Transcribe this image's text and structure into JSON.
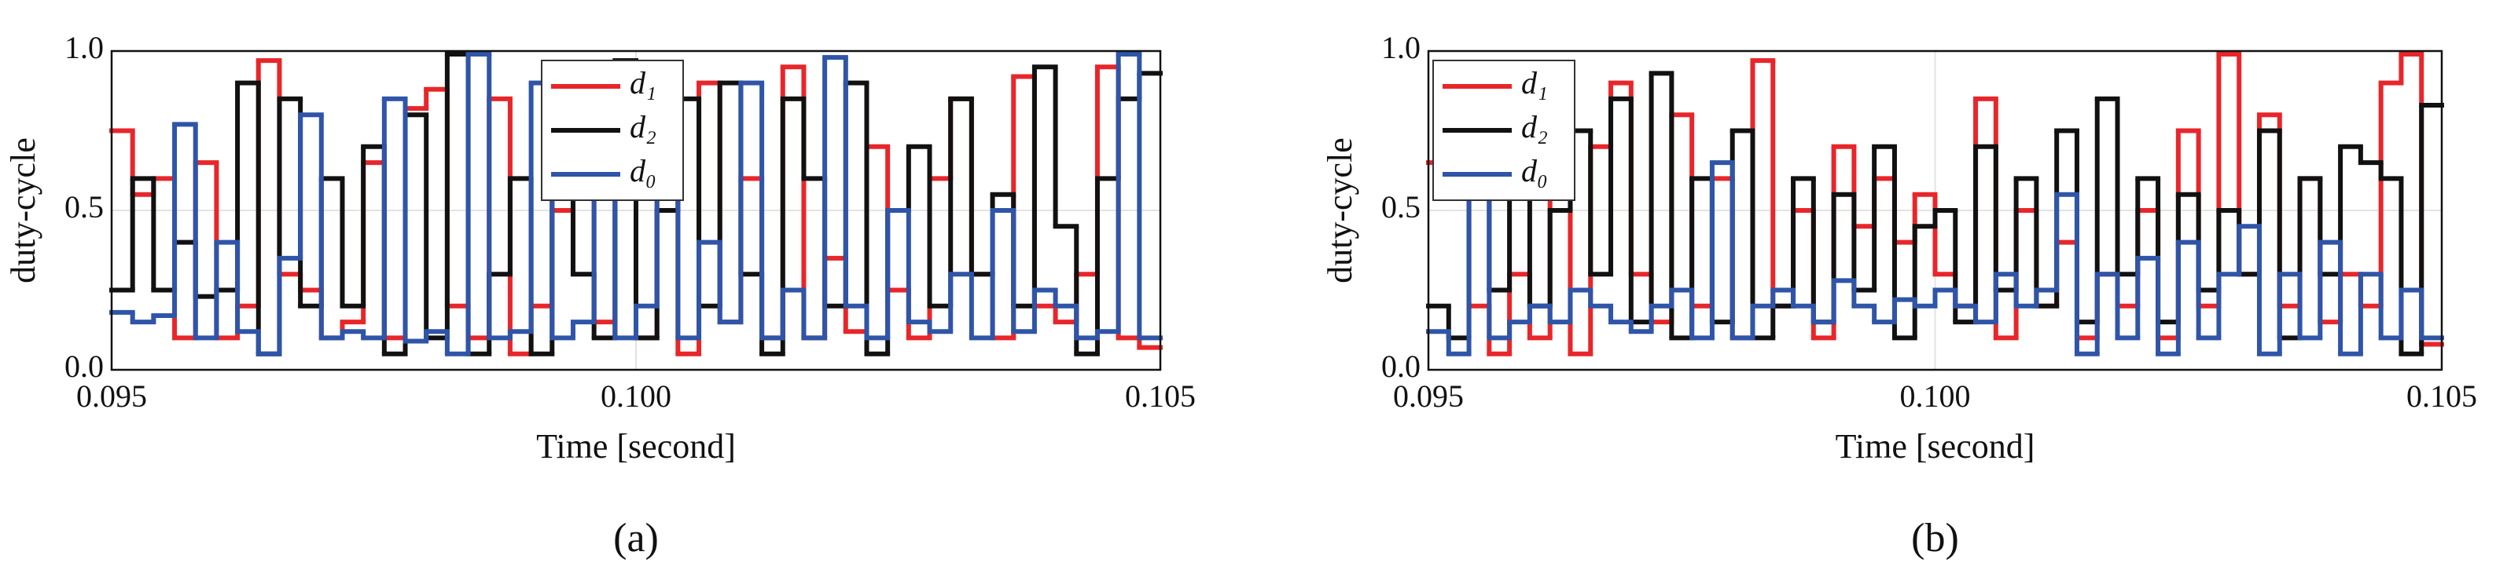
{
  "chart_data": [
    {
      "type": "step",
      "panel_label": "(a)",
      "xlabel": "Time [second]",
      "ylabel": "duty-cycle",
      "xlim": [
        0.095,
        0.105
      ],
      "ylim": [
        0,
        1
      ],
      "xticks": [
        0.095,
        {
          "value": 0.1,
          "label": "0.100"
        },
        0.105
      ],
      "yticks": [
        {
          "value": 0,
          "label": "0.0"
        },
        0.5,
        {
          "value": 1,
          "label": "1.0"
        }
      ],
      "grid": true,
      "legend": "upper center",
      "x": [
        0.095,
        0.0952,
        0.0954,
        0.0956,
        0.0958,
        0.096,
        0.0962,
        0.0964,
        0.0966,
        0.0968,
        0.097,
        0.0972,
        0.0974,
        0.0976,
        0.0978,
        0.098,
        0.0982,
        0.0984,
        0.0986,
        0.0988,
        0.099,
        0.0992,
        0.0994,
        0.0996,
        0.0998,
        0.1,
        0.1002,
        0.1004,
        0.1006,
        0.1008,
        0.101,
        0.1012,
        0.1014,
        0.1016,
        0.1018,
        0.102,
        0.1022,
        0.1024,
        0.1026,
        0.1028,
        0.103,
        0.1032,
        0.1034,
        0.1036,
        0.1038,
        0.104,
        0.1042,
        0.1044,
        0.1046,
        0.1048
      ],
      "series": [
        {
          "name": "d₁",
          "color": "#e8262a",
          "values": [
            0.75,
            0.55,
            0.6,
            0.1,
            0.65,
            0.1,
            0.2,
            0.97,
            0.3,
            0.25,
            0.1,
            0.15,
            0.65,
            0.1,
            0.82,
            0.88,
            0.2,
            0.1,
            0.85,
            0.05,
            0.2,
            0.5,
            0.55,
            0.15,
            0.9,
            0.1,
            0.7,
            0.05,
            0.9,
            0.15,
            0.6,
            0.1,
            0.95,
            0.1,
            0.35,
            0.12,
            0.7,
            0.25,
            0.1,
            0.6,
            0.85,
            0.3,
            0.1,
            0.92,
            0.2,
            0.15,
            0.3,
            0.95,
            0.1,
            0.07
          ]
        },
        {
          "name": "d₂",
          "color": "#111111",
          "values": [
            0.25,
            0.6,
            0.25,
            0.4,
            0.23,
            0.25,
            0.9,
            0.05,
            0.85,
            0.2,
            0.6,
            0.2,
            0.7,
            0.05,
            0.8,
            0.1,
            0.99,
            0.05,
            0.3,
            0.6,
            0.05,
            0.8,
            0.3,
            0.1,
            0.97,
            0.1,
            0.5,
            0.85,
            0.2,
            0.9,
            0.3,
            0.05,
            0.85,
            0.6,
            0.2,
            0.9,
            0.05,
            0.5,
            0.7,
            0.2,
            0.85,
            0.3,
            0.55,
            0.2,
            0.95,
            0.45,
            0.05,
            0.6,
            0.85,
            0.93
          ]
        },
        {
          "name": "d₀",
          "color": "#2f55a8",
          "values": [
            0.18,
            0.15,
            0.17,
            0.77,
            0.1,
            0.4,
            0.12,
            0.05,
            0.35,
            0.8,
            0.1,
            0.12,
            0.1,
            0.85,
            0.09,
            0.12,
            0.05,
            0.99,
            0.1,
            0.12,
            0.9,
            0.1,
            0.15,
            0.7,
            0.1,
            0.2,
            0.95,
            0.1,
            0.4,
            0.15,
            0.9,
            0.1,
            0.25,
            0.1,
            0.98,
            0.2,
            0.1,
            0.5,
            0.15,
            0.12,
            0.3,
            0.1,
            0.5,
            0.12,
            0.25,
            0.2,
            0.1,
            0.12,
            0.99,
            0.1
          ]
        }
      ]
    },
    {
      "type": "step",
      "panel_label": "(b)",
      "xlabel": "Time [second]",
      "ylabel": "duty-cycle",
      "xlim": [
        0.095,
        0.105
      ],
      "ylim": [
        0,
        1
      ],
      "xticks": [
        0.095,
        {
          "value": 0.1,
          "label": "0.100"
        },
        0.105
      ],
      "yticks": [
        {
          "value": 0,
          "label": "0.0"
        },
        0.5,
        {
          "value": 1,
          "label": "1.0"
        }
      ],
      "grid": true,
      "legend": "upper left",
      "x": [
        0.095,
        0.0952,
        0.0954,
        0.0956,
        0.0958,
        0.096,
        0.0962,
        0.0964,
        0.0966,
        0.0968,
        0.097,
        0.0972,
        0.0974,
        0.0976,
        0.0978,
        0.098,
        0.0982,
        0.0984,
        0.0986,
        0.0988,
        0.099,
        0.0992,
        0.0994,
        0.0996,
        0.0998,
        0.1,
        0.1002,
        0.1004,
        0.1006,
        0.1008,
        0.101,
        0.1012,
        0.1014,
        0.1016,
        0.1018,
        0.102,
        0.1022,
        0.1024,
        0.1026,
        0.1028,
        0.103,
        0.1032,
        0.1034,
        0.1036,
        0.1038,
        0.104,
        0.1042,
        0.1044,
        0.1046,
        0.1048
      ],
      "series": [
        {
          "name": "d₁",
          "color": "#e8262a",
          "values": [
            0.65,
            0.9,
            0.2,
            0.05,
            0.3,
            0.1,
            0.6,
            0.05,
            0.7,
            0.9,
            0.3,
            0.15,
            0.8,
            0.2,
            0.6,
            0.1,
            0.97,
            0.2,
            0.5,
            0.1,
            0.7,
            0.45,
            0.6,
            0.4,
            0.55,
            0.3,
            0.2,
            0.85,
            0.1,
            0.5,
            0.2,
            0.4,
            0.1,
            0.3,
            0.2,
            0.5,
            0.1,
            0.75,
            0.2,
            0.99,
            0.3,
            0.8,
            0.2,
            0.6,
            0.15,
            0.3,
            0.2,
            0.9,
            0.99,
            0.08
          ]
        },
        {
          "name": "d₂",
          "color": "#111111",
          "values": [
            0.2,
            0.1,
            0.6,
            0.25,
            0.7,
            0.2,
            0.5,
            0.75,
            0.3,
            0.85,
            0.15,
            0.93,
            0.1,
            0.6,
            0.15,
            0.75,
            0.1,
            0.2,
            0.6,
            0.15,
            0.55,
            0.25,
            0.7,
            0.1,
            0.45,
            0.5,
            0.15,
            0.7,
            0.25,
            0.6,
            0.2,
            0.75,
            0.15,
            0.85,
            0.3,
            0.6,
            0.15,
            0.55,
            0.25,
            0.5,
            0.3,
            0.75,
            0.1,
            0.6,
            0.3,
            0.7,
            0.65,
            0.6,
            0.05,
            0.83
          ]
        },
        {
          "name": "d₀",
          "color": "#2f55a8",
          "values": [
            0.12,
            0.05,
            0.6,
            0.1,
            0.15,
            0.2,
            0.15,
            0.25,
            0.2,
            0.15,
            0.12,
            0.2,
            0.25,
            0.1,
            0.65,
            0.1,
            0.2,
            0.25,
            0.2,
            0.15,
            0.28,
            0.2,
            0.15,
            0.22,
            0.2,
            0.25,
            0.2,
            0.15,
            0.3,
            0.2,
            0.25,
            0.55,
            0.05,
            0.3,
            0.1,
            0.35,
            0.05,
            0.4,
            0.1,
            0.3,
            0.45,
            0.05,
            0.3,
            0.1,
            0.4,
            0.05,
            0.3,
            0.1,
            0.25,
            0.1
          ]
        }
      ]
    }
  ]
}
